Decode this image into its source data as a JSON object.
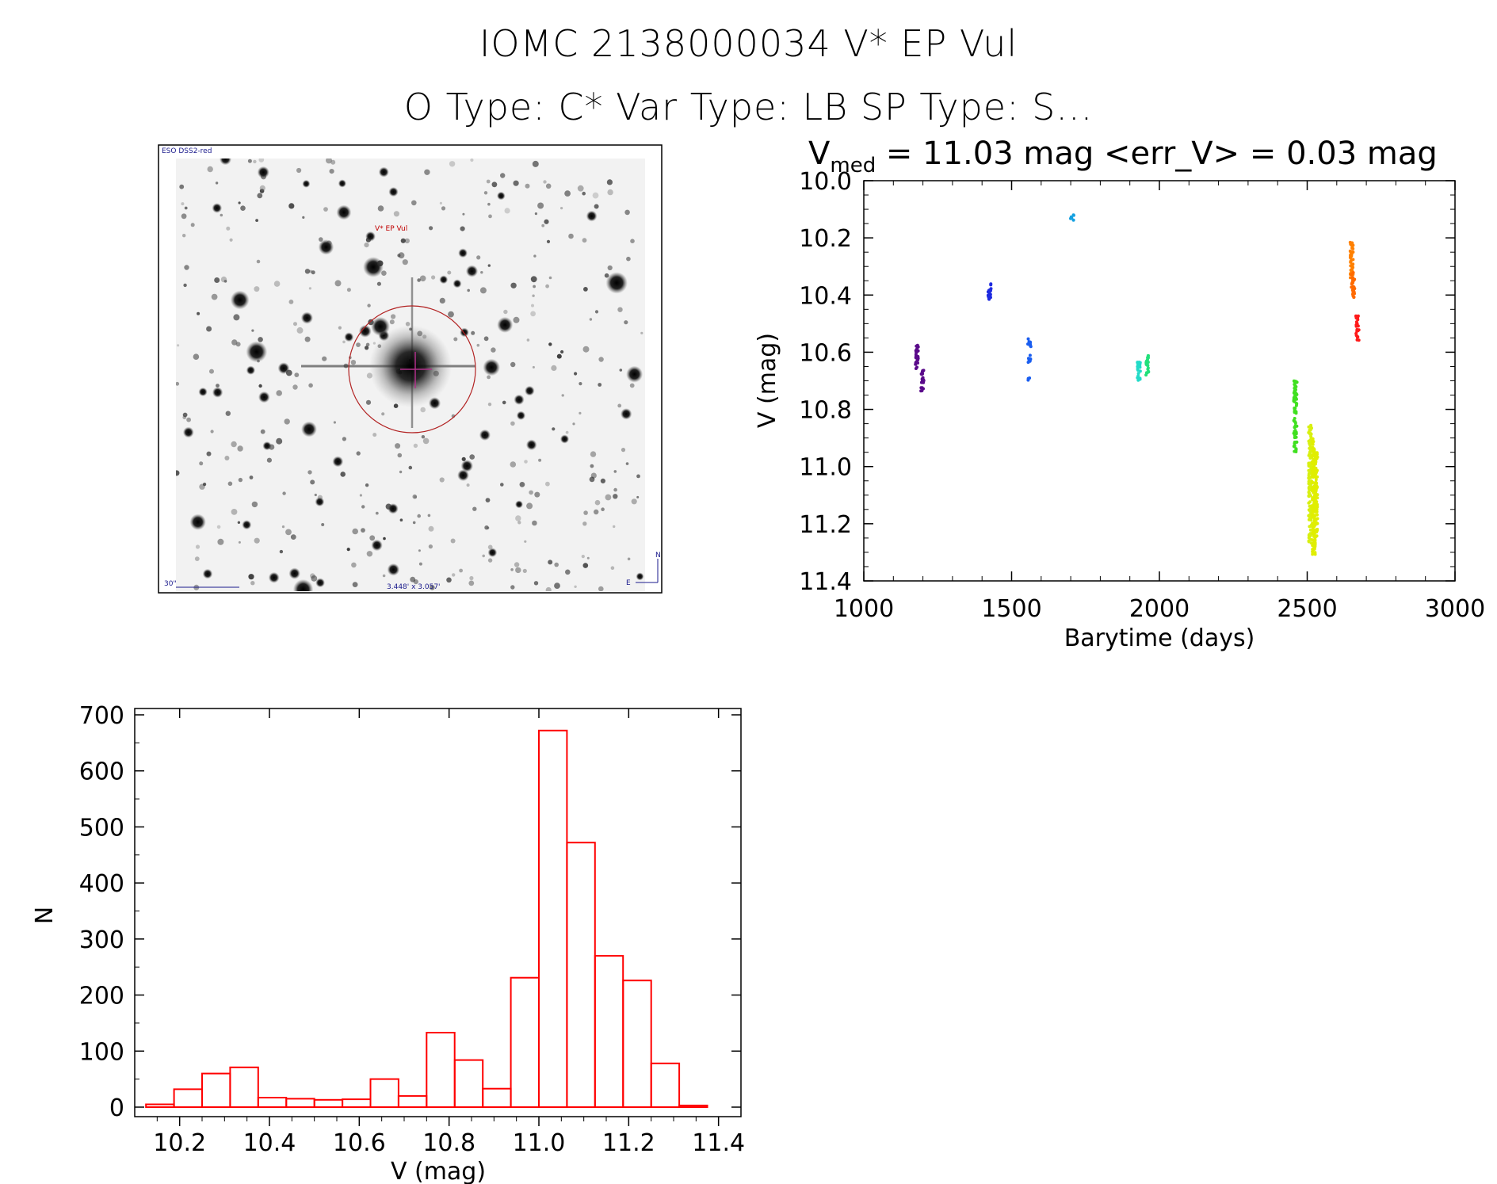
{
  "header": {
    "line1": "IOMC 2138000034    V* EP Vul",
    "line2": "O Type: C*  Var Type: LB  SP Type: S..."
  },
  "finder": {
    "survey_label": "ESO DSS2-red",
    "object_label": "V* EP Vul",
    "scale_label": "30\"",
    "size_label": "3.448' x 3.057'",
    "north_label": "N",
    "east_label": "E"
  },
  "colors": {
    "histogram": "#ff0000",
    "circle": "#b22222"
  },
  "chart_data": [
    {
      "type": "scatter",
      "title_main": "V",
      "title_sub": "med",
      "title_rest": " = 11.03 mag <err_V> = 0.03 mag",
      "xlabel": "Barytime (days)",
      "ylabel": "V (mag)",
      "xlim": [
        1000,
        3000
      ],
      "ylim": [
        11.4,
        10.0
      ],
      "xticks": [
        "1000",
        "1500",
        "2000",
        "2500",
        "3000"
      ],
      "yticks": [
        "10.0",
        "10.2",
        "10.4",
        "10.6",
        "10.8",
        "11.0",
        "11.2",
        "11.4"
      ],
      "groups": [
        {
          "x": 1180,
          "ymin": 10.57,
          "ymax": 10.66,
          "color": "#5a0a8a"
        },
        {
          "x": 1198,
          "ymin": 10.66,
          "ymax": 10.74,
          "color": "#5a0a8a"
        },
        {
          "x": 1425,
          "ymin": 10.36,
          "ymax": 10.42,
          "color": "#1e2ae0"
        },
        {
          "x": 1560,
          "ymin": 10.55,
          "ymax": 10.58,
          "color": "#1a5ef0"
        },
        {
          "x": 1560,
          "ymin": 10.61,
          "ymax": 10.64,
          "color": "#1a5ef0"
        },
        {
          "x": 1560,
          "ymin": 10.69,
          "ymax": 10.7,
          "color": "#1a5ef0"
        },
        {
          "x": 1705,
          "ymin": 10.12,
          "ymax": 10.14,
          "color": "#14a0e0"
        },
        {
          "x": 1930,
          "ymin": 10.63,
          "ymax": 10.7,
          "color": "#22dbc8"
        },
        {
          "x": 1958,
          "ymin": 10.61,
          "ymax": 10.68,
          "color": "#22e07a"
        },
        {
          "x": 2460,
          "ymin": 10.7,
          "ymax": 10.95,
          "color": "#40e020"
        },
        {
          "x": 2510,
          "ymin": 10.85,
          "ymax": 11.27,
          "color": "#d8f010"
        },
        {
          "x": 2522,
          "ymin": 10.9,
          "ymax": 11.31,
          "color": "#e0ee00"
        },
        {
          "x": 2530,
          "ymin": 10.95,
          "ymax": 11.25,
          "color": "#e0ee00"
        },
        {
          "x": 2650,
          "ymin": 10.21,
          "ymax": 10.34,
          "color": "#ff8000"
        },
        {
          "x": 2655,
          "ymin": 10.32,
          "ymax": 10.41,
          "color": "#ff6a00"
        },
        {
          "x": 2670,
          "ymin": 10.47,
          "ymax": 10.56,
          "color": "#ff1a1a"
        }
      ]
    },
    {
      "type": "bar",
      "xlabel": "V (mag)",
      "ylabel": "N",
      "xlim": [
        10.1,
        11.45
      ],
      "ylim": [
        0,
        700
      ],
      "xticks": [
        "10.2",
        "10.4",
        "10.6",
        "10.8",
        "11.0",
        "11.2",
        "11.4"
      ],
      "yticks": [
        "0",
        "100",
        "200",
        "300",
        "400",
        "500",
        "600",
        "700"
      ],
      "bin_start": 10.125,
      "bin_width": 0.0625,
      "values": [
        5,
        32,
        60,
        71,
        17,
        15,
        13,
        14,
        50,
        20,
        133,
        84,
        33,
        231,
        672,
        472,
        270,
        226,
        78,
        3
      ]
    }
  ]
}
